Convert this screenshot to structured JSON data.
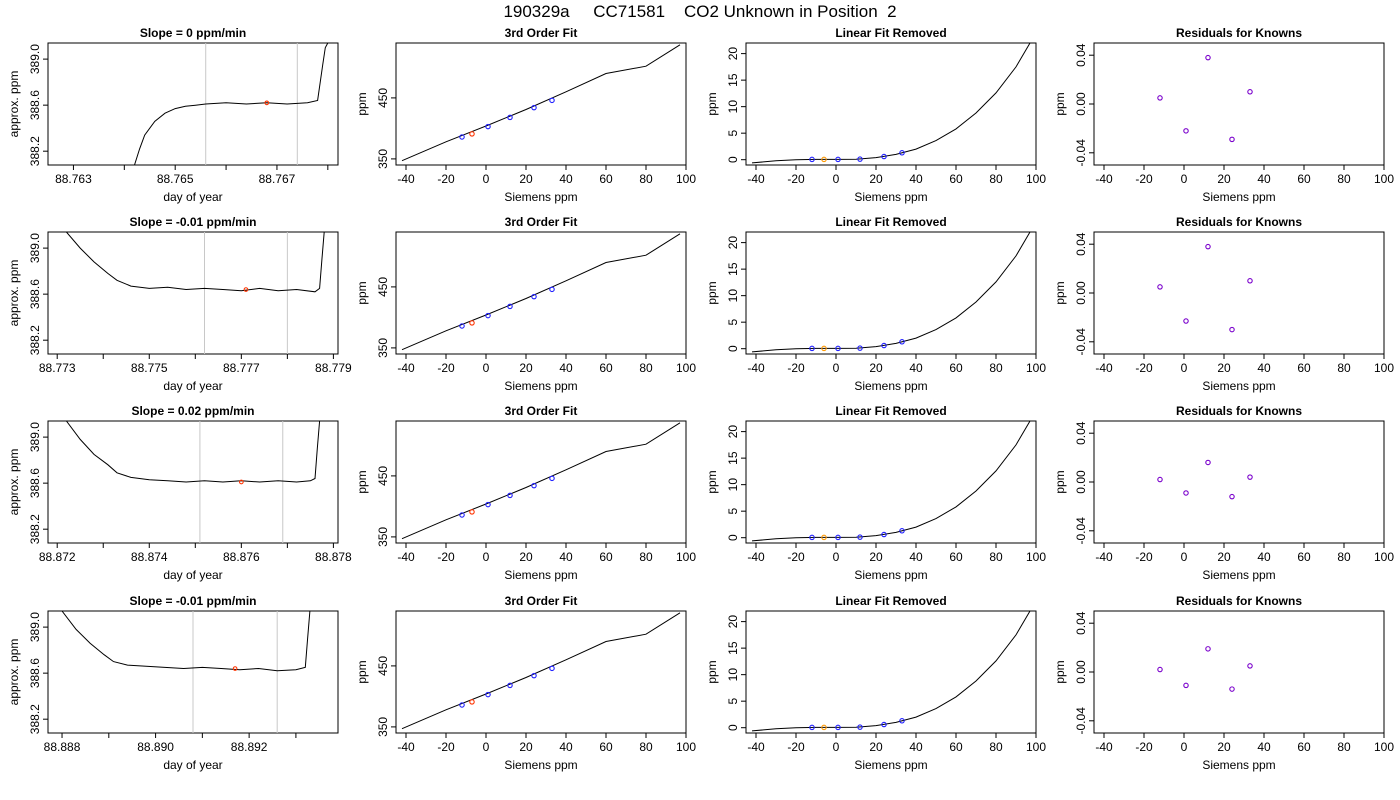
{
  "page_title": "190329a     CC71581    CO2 Unknown in Position  2",
  "chart_data": [
    {
      "type": "line",
      "panel": "time",
      "title": "Slope =  0  ppm/min",
      "xlabel": "day of year",
      "ylabel": "approx. ppm",
      "xlim": [
        88.7625,
        88.7682
      ],
      "ylim": [
        388.08,
        389.14
      ],
      "xticks": [
        88.763,
        88.764,
        88.765,
        88.766,
        88.767,
        88.768
      ],
      "xtick_labels": [
        "88.763",
        "",
        "88.765",
        "",
        "88.767",
        ""
      ],
      "yticks": [
        388.2,
        388.6,
        389.0
      ],
      "ytick_labels": [
        "388.2",
        "388.6",
        "389.0"
      ],
      "vlines": [
        88.7656,
        88.7674
      ],
      "vline_color": "#c8c8c8",
      "mean_point": {
        "x": 88.7668,
        "y": 388.62
      },
      "series": [
        {
          "x": [
            88.7642,
            88.7643,
            88.7644,
            88.7646,
            88.7648,
            88.765,
            88.7652,
            88.7654,
            88.7656,
            88.766,
            88.7664,
            88.7668,
            88.7672,
            88.7676,
            88.7678,
            88.7679,
            88.76795,
            88.768
          ],
          "y": [
            388.08,
            388.22,
            388.34,
            388.46,
            388.53,
            388.57,
            388.59,
            388.6,
            388.61,
            388.62,
            388.61,
            388.62,
            388.61,
            388.62,
            388.64,
            388.95,
            389.1,
            389.14
          ]
        }
      ]
    },
    {
      "type": "scatter",
      "panel": "fit",
      "title": "3rd Order Fit",
      "xlabel": "Siemens ppm",
      "ylabel": "ppm",
      "xlim": [
        -45,
        100
      ],
      "ylim": [
        340,
        540
      ],
      "xticks": [
        -40,
        -20,
        0,
        20,
        40,
        60,
        80,
        100
      ],
      "yticks": [
        350,
        450
      ],
      "curve": {
        "x": [
          -42,
          -20,
          0,
          20,
          40,
          60,
          80,
          97
        ],
        "y": [
          347,
          378,
          404,
          431,
          460,
          490,
          502,
          537
        ]
      },
      "knowns": {
        "x": [
          -12,
          1,
          12,
          24,
          33
        ],
        "y": [
          386,
          403,
          418,
          434,
          446
        ]
      },
      "unknowns": {
        "x": [
          -7
        ],
        "y": [
          391
        ]
      }
    },
    {
      "type": "scatter",
      "panel": "residual_curve",
      "title": "Linear Fit Removed",
      "xlabel": "Siemens ppm",
      "ylabel": "ppm",
      "xlim": [
        -45,
        100
      ],
      "ylim": [
        -1,
        22
      ],
      "xticks": [
        -40,
        -20,
        0,
        20,
        40,
        60,
        80,
        100
      ],
      "yticks": [
        0,
        5,
        10,
        15,
        20
      ],
      "curve": {
        "x": [
          -42,
          -30,
          -20,
          -10,
          0,
          10,
          20,
          30,
          40,
          50,
          60,
          70,
          80,
          90,
          97
        ],
        "y": [
          -0.6,
          -0.2,
          0,
          0.05,
          0.05,
          0.1,
          0.4,
          1.0,
          2.0,
          3.6,
          5.8,
          8.8,
          12.6,
          17.5,
          22
        ]
      },
      "knowns": {
        "x": [
          -12,
          1,
          12,
          24,
          33
        ],
        "y": [
          0.05,
          0.05,
          0.1,
          0.6,
          1.3
        ]
      },
      "unknowns": {
        "x": [
          -6
        ],
        "y": [
          0.05
        ]
      }
    },
    {
      "type": "scatter",
      "panel": "residuals",
      "title": "Residuals for Knowns",
      "xlabel": "Siemens ppm",
      "ylabel": "ppm",
      "xlim": [
        -45,
        100
      ],
      "ylim": [
        -0.05,
        0.05
      ],
      "xticks": [
        -40,
        -20,
        0,
        20,
        40,
        60,
        80,
        100
      ],
      "yticks": [
        -0.04,
        0.0,
        0.04
      ],
      "ytick_labels": [
        "-0.04",
        "0.00",
        "0.04"
      ],
      "knowns": {
        "x": [
          -12,
          1,
          12,
          24,
          33
        ],
        "y": [
          0.005,
          -0.022,
          0.038,
          -0.029,
          0.01
        ]
      }
    },
    {
      "type": "line",
      "panel": "time",
      "title": "Slope =  -0.01  ppm/min",
      "xlabel": "day of year",
      "ylabel": "approx. ppm",
      "xlim": [
        88.7728,
        88.7791
      ],
      "ylim": [
        388.08,
        389.14
      ],
      "xticks": [
        88.773,
        88.774,
        88.775,
        88.776,
        88.777,
        88.778,
        88.779
      ],
      "xtick_labels": [
        "88.773",
        "",
        "88.775",
        "",
        "88.777",
        "",
        "88.779"
      ],
      "yticks": [
        388.2,
        388.6,
        389.0
      ],
      "ytick_labels": [
        "388.2",
        "388.6",
        "389.0"
      ],
      "vlines": [
        88.7762,
        88.778
      ],
      "vline_color": "#c8c8c8",
      "mean_point": {
        "x": 88.7771,
        "y": 388.64
      },
      "series": [
        {
          "x": [
            88.7732,
            88.7735,
            88.7738,
            88.7741,
            88.7743,
            88.7746,
            88.775,
            88.7754,
            88.7758,
            88.7762,
            88.7766,
            88.777,
            88.7774,
            88.7778,
            88.7782,
            88.7786,
            88.7787,
            88.77875,
            88.7788
          ],
          "y": [
            389.14,
            389.0,
            388.88,
            388.78,
            388.72,
            388.67,
            388.65,
            388.66,
            388.64,
            388.65,
            388.64,
            388.63,
            388.65,
            388.63,
            388.64,
            388.62,
            388.65,
            388.9,
            389.14
          ]
        }
      ]
    },
    {
      "type": "scatter",
      "panel": "fit",
      "title": "3rd Order Fit",
      "xlabel": "Siemens ppm",
      "ylabel": "ppm",
      "xlim": [
        -45,
        100
      ],
      "ylim": [
        340,
        540
      ],
      "xticks": [
        -40,
        -20,
        0,
        20,
        40,
        60,
        80,
        100
      ],
      "yticks": [
        350,
        450
      ],
      "curve": {
        "x": [
          -42,
          -20,
          0,
          20,
          40,
          60,
          80,
          97
        ],
        "y": [
          347,
          378,
          404,
          431,
          460,
          490,
          502,
          537
        ]
      },
      "knowns": {
        "x": [
          -12,
          1,
          12,
          24,
          33
        ],
        "y": [
          386,
          403,
          418,
          434,
          446
        ]
      },
      "unknowns": {
        "x": [
          -7
        ],
        "y": [
          391
        ]
      }
    },
    {
      "type": "scatter",
      "panel": "residual_curve",
      "title": "Linear Fit Removed",
      "xlabel": "Siemens ppm",
      "ylabel": "ppm",
      "xlim": [
        -45,
        100
      ],
      "ylim": [
        -1,
        22
      ],
      "xticks": [
        -40,
        -20,
        0,
        20,
        40,
        60,
        80,
        100
      ],
      "yticks": [
        0,
        5,
        10,
        15,
        20
      ],
      "curve": {
        "x": [
          -42,
          -30,
          -20,
          -10,
          0,
          10,
          20,
          30,
          40,
          50,
          60,
          70,
          80,
          90,
          97
        ],
        "y": [
          -0.6,
          -0.2,
          0,
          0.05,
          0.05,
          0.1,
          0.4,
          1.0,
          2.0,
          3.6,
          5.8,
          8.8,
          12.6,
          17.5,
          22
        ]
      },
      "knowns": {
        "x": [
          -12,
          1,
          12,
          24,
          33
        ],
        "y": [
          0.05,
          0.05,
          0.1,
          0.6,
          1.3
        ]
      },
      "unknowns": {
        "x": [
          -6
        ],
        "y": [
          0.05
        ]
      }
    },
    {
      "type": "scatter",
      "panel": "residuals",
      "title": "Residuals for Knowns",
      "xlabel": "Siemens ppm",
      "ylabel": "ppm",
      "xlim": [
        -45,
        100
      ],
      "ylim": [
        -0.05,
        0.05
      ],
      "xticks": [
        -40,
        -20,
        0,
        20,
        40,
        60,
        80,
        100
      ],
      "yticks": [
        -0.04,
        0.0,
        0.04
      ],
      "ytick_labels": [
        "-0.04",
        "0.00",
        "0.04"
      ],
      "knowns": {
        "x": [
          -12,
          1,
          12,
          24,
          33
        ],
        "y": [
          0.005,
          -0.023,
          0.038,
          -0.03,
          0.01
        ]
      }
    },
    {
      "type": "line",
      "panel": "time",
      "title": "Slope =  0.02  ppm/min",
      "xlabel": "day of year",
      "ylabel": "approx. ppm",
      "xlim": [
        88.8718,
        88.8781
      ],
      "ylim": [
        388.08,
        389.14
      ],
      "xticks": [
        88.872,
        88.873,
        88.874,
        88.875,
        88.876,
        88.877,
        88.878
      ],
      "xtick_labels": [
        "88.872",
        "",
        "88.874",
        "",
        "88.876",
        "",
        "88.878"
      ],
      "yticks": [
        388.2,
        388.6,
        389.0
      ],
      "ytick_labels": [
        "388.2",
        "388.6",
        "389.0"
      ],
      "vlines": [
        88.8751,
        88.8769
      ],
      "vline_color": "#c8c8c8",
      "mean_point": {
        "x": 88.876,
        "y": 388.61
      },
      "series": [
        {
          "x": [
            88.8722,
            88.8725,
            88.8728,
            88.8731,
            88.8733,
            88.8736,
            88.874,
            88.8744,
            88.8748,
            88.8752,
            88.8756,
            88.876,
            88.8764,
            88.8768,
            88.8772,
            88.8775,
            88.8776,
            88.87765,
            88.8777
          ],
          "y": [
            389.14,
            388.98,
            388.85,
            388.76,
            388.69,
            388.65,
            388.63,
            388.62,
            388.61,
            388.62,
            388.61,
            388.62,
            388.61,
            388.62,
            388.61,
            388.62,
            388.64,
            388.9,
            389.14
          ]
        }
      ]
    },
    {
      "type": "scatter",
      "panel": "fit",
      "title": "3rd Order Fit",
      "xlabel": "Siemens ppm",
      "ylabel": "ppm",
      "xlim": [
        -45,
        100
      ],
      "ylim": [
        340,
        540
      ],
      "xticks": [
        -40,
        -20,
        0,
        20,
        40,
        60,
        80,
        100
      ],
      "yticks": [
        350,
        450
      ],
      "curve": {
        "x": [
          -42,
          -20,
          0,
          20,
          40,
          60,
          80,
          97
        ],
        "y": [
          347,
          378,
          404,
          431,
          460,
          490,
          502,
          537
        ]
      },
      "knowns": {
        "x": [
          -12,
          1,
          12,
          24,
          33
        ],
        "y": [
          386,
          403,
          418,
          434,
          446
        ]
      },
      "unknowns": {
        "x": [
          -7
        ],
        "y": [
          391
        ]
      }
    },
    {
      "type": "scatter",
      "panel": "residual_curve",
      "title": "Linear Fit Removed",
      "xlabel": "Siemens ppm",
      "ylabel": "ppm",
      "xlim": [
        -45,
        100
      ],
      "ylim": [
        -1,
        22
      ],
      "xticks": [
        -40,
        -20,
        0,
        20,
        40,
        60,
        80,
        100
      ],
      "yticks": [
        0,
        5,
        10,
        15,
        20
      ],
      "curve": {
        "x": [
          -42,
          -30,
          -20,
          -10,
          0,
          10,
          20,
          30,
          40,
          50,
          60,
          70,
          80,
          90,
          97
        ],
        "y": [
          -0.6,
          -0.2,
          0,
          0.05,
          0.05,
          0.1,
          0.4,
          1.0,
          2.0,
          3.6,
          5.8,
          8.8,
          12.6,
          17.5,
          22
        ]
      },
      "knowns": {
        "x": [
          -12,
          1,
          12,
          24,
          33
        ],
        "y": [
          0.05,
          0.05,
          0.1,
          0.6,
          1.3
        ]
      },
      "unknowns": {
        "x": [
          -6
        ],
        "y": [
          0.05
        ]
      }
    },
    {
      "type": "scatter",
      "panel": "residuals",
      "title": "Residuals for Knowns",
      "xlabel": "Siemens ppm",
      "ylabel": "ppm",
      "xlim": [
        -45,
        100
      ],
      "ylim": [
        -0.05,
        0.05
      ],
      "xticks": [
        -40,
        -20,
        0,
        20,
        40,
        60,
        80,
        100
      ],
      "yticks": [
        -0.04,
        0.0,
        0.04
      ],
      "ytick_labels": [
        "-0.04",
        "0.00",
        "0.04"
      ],
      "knowns": {
        "x": [
          -12,
          1,
          12,
          24,
          33
        ],
        "y": [
          0.002,
          -0.009,
          0.016,
          -0.012,
          0.004
        ]
      }
    },
    {
      "type": "line",
      "panel": "time",
      "title": "Slope =  -0.01  ppm/min",
      "xlabel": "day of year",
      "ylabel": "approx. ppm",
      "xlim": [
        88.8877,
        88.8939
      ],
      "ylim": [
        388.08,
        389.14
      ],
      "xticks": [
        88.888,
        88.889,
        88.89,
        88.891,
        88.892,
        88.893
      ],
      "xtick_labels": [
        "88.888",
        "",
        "88.890",
        "",
        "88.892",
        ""
      ],
      "yticks": [
        388.2,
        388.6,
        389.0
      ],
      "ytick_labels": [
        "388.2",
        "388.6",
        "389.0"
      ],
      "vlines": [
        88.8908,
        88.8926
      ],
      "vline_color": "#c8c8c8",
      "mean_point": {
        "x": 88.8917,
        "y": 388.64
      },
      "series": [
        {
          "x": [
            88.888,
            88.8883,
            88.8886,
            88.8889,
            88.8891,
            88.8894,
            88.8898,
            88.8902,
            88.8906,
            88.891,
            88.8914,
            88.8918,
            88.8922,
            88.8926,
            88.893,
            88.8932,
            88.89325,
            88.8933
          ],
          "y": [
            389.14,
            388.98,
            388.86,
            388.76,
            388.7,
            388.67,
            388.66,
            388.65,
            388.64,
            388.65,
            388.64,
            388.63,
            388.64,
            388.62,
            388.63,
            388.65,
            388.9,
            389.14
          ]
        }
      ]
    },
    {
      "type": "scatter",
      "panel": "fit",
      "title": "3rd Order Fit",
      "xlabel": "Siemens ppm",
      "ylabel": "ppm",
      "xlim": [
        -45,
        100
      ],
      "ylim": [
        340,
        540
      ],
      "xticks": [
        -40,
        -20,
        0,
        20,
        40,
        60,
        80,
        100
      ],
      "yticks": [
        350,
        450
      ],
      "curve": {
        "x": [
          -42,
          -20,
          0,
          20,
          40,
          60,
          80,
          97
        ],
        "y": [
          347,
          378,
          404,
          431,
          460,
          490,
          502,
          537
        ]
      },
      "knowns": {
        "x": [
          -12,
          1,
          12,
          24,
          33
        ],
        "y": [
          386,
          403,
          418,
          434,
          446
        ]
      },
      "unknowns": {
        "x": [
          -7
        ],
        "y": [
          391
        ]
      }
    },
    {
      "type": "scatter",
      "panel": "residual_curve",
      "title": "Linear Fit Removed",
      "xlabel": "Siemens ppm",
      "ylabel": "ppm",
      "xlim": [
        -45,
        100
      ],
      "ylim": [
        -1,
        22
      ],
      "xticks": [
        -40,
        -20,
        0,
        20,
        40,
        60,
        80,
        100
      ],
      "yticks": [
        0,
        5,
        10,
        15,
        20
      ],
      "curve": {
        "x": [
          -42,
          -30,
          -20,
          -10,
          0,
          10,
          20,
          30,
          40,
          50,
          60,
          70,
          80,
          90,
          97
        ],
        "y": [
          -0.6,
          -0.2,
          0,
          0.05,
          0.05,
          0.1,
          0.4,
          1.0,
          2.0,
          3.6,
          5.8,
          8.8,
          12.6,
          17.5,
          22
        ]
      },
      "knowns": {
        "x": [
          -12,
          1,
          12,
          24,
          33
        ],
        "y": [
          0.05,
          0.05,
          0.1,
          0.6,
          1.3
        ]
      },
      "unknowns": {
        "x": [
          -6
        ],
        "y": [
          0.05
        ]
      }
    },
    {
      "type": "scatter",
      "panel": "residuals",
      "title": "Residuals for Knowns",
      "xlabel": "Siemens ppm",
      "ylabel": "ppm",
      "xlim": [
        -45,
        100
      ],
      "ylim": [
        -0.05,
        0.05
      ],
      "xticks": [
        -40,
        -20,
        0,
        20,
        40,
        60,
        80,
        100
      ],
      "yticks": [
        -0.04,
        0.0,
        0.04
      ],
      "ytick_labels": [
        "-0.04",
        "0.00",
        "0.04"
      ],
      "knowns": {
        "x": [
          -12,
          1,
          12,
          24,
          33
        ],
        "y": [
          0.002,
          -0.011,
          0.019,
          -0.014,
          0.005
        ]
      }
    }
  ],
  "colors": {
    "line": "#000000",
    "known_marker": "#1f1fff",
    "residual_marker": "#7a00cc",
    "unknown_marker": "#ff3300",
    "unknown_marker_alt": "#ff9900",
    "vline": "#c8c8c8"
  }
}
